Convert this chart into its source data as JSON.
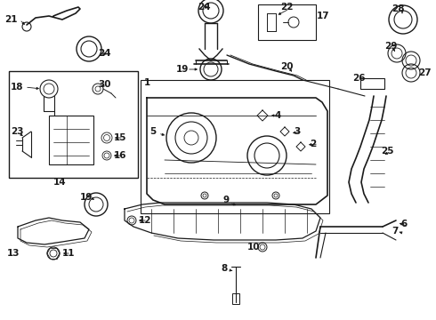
{
  "bg_color": "#ffffff",
  "line_color": "#1a1a1a",
  "fig_width": 4.9,
  "fig_height": 3.6,
  "dpi": 100,
  "gray": "#888888",
  "lgray": "#cccccc"
}
